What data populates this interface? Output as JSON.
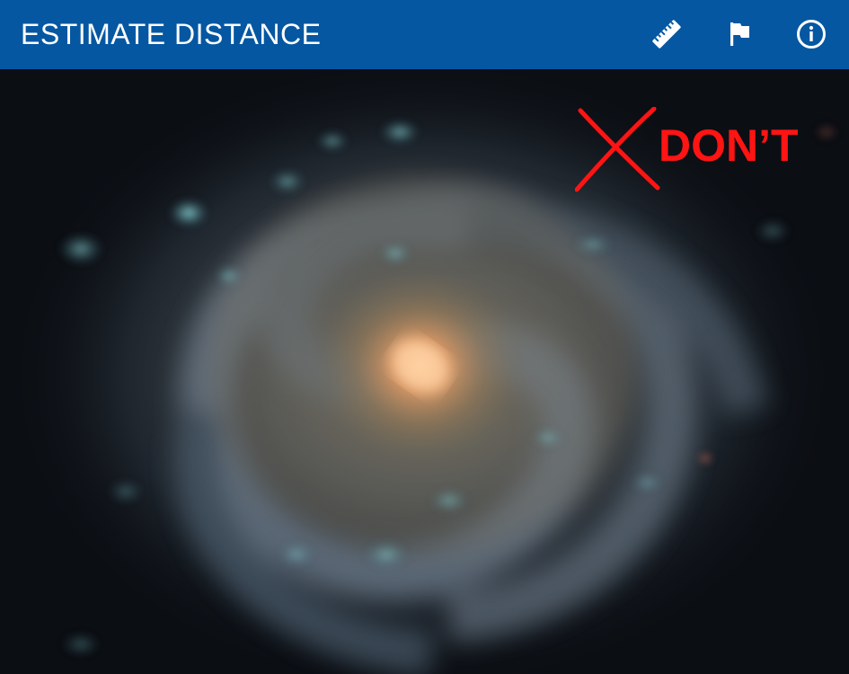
{
  "header": {
    "title": "ESTIMATE DISTANCE",
    "actions": [
      {
        "icon": "ruler-icon"
      },
      {
        "icon": "flag-icon"
      },
      {
        "icon": "info-icon"
      }
    ],
    "background": "#0557a2"
  },
  "main": {
    "image": "spiral-galaxy",
    "overlay": {
      "label": "DON’T",
      "icon": "cross-icon",
      "color": "#ff1414"
    }
  }
}
